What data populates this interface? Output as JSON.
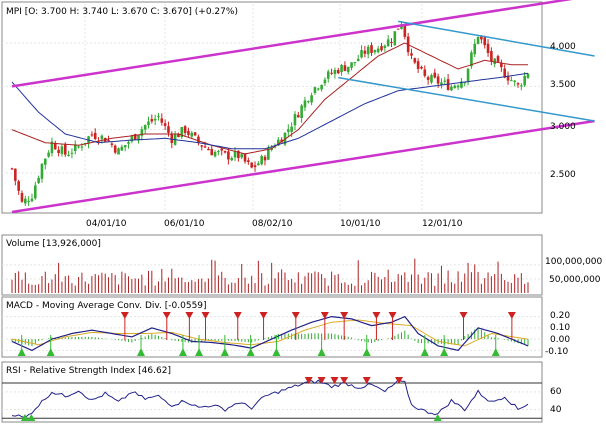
{
  "chart_data": [
    {
      "type": "candlestick",
      "panel": "price",
      "label": "MPI [O: 3.700  H: 3.740  L: 3.670  C: 3.670] (+0.27%)",
      "x_tick_labels": [
        "04/01/10",
        "06/01/10",
        "08/02/10",
        "10/01/10",
        "12/01/10"
      ],
      "y_tick_labels": [
        "4.000",
        "3.500",
        "3.000",
        "2.500"
      ],
      "y_ticks": [
        4.0,
        3.5,
        3.0,
        2.5
      ],
      "ylim": [
        2.05,
        4.45
      ],
      "close_path": [
        [
          0,
          2.55
        ],
        [
          3,
          2.15
        ],
        [
          6,
          2.25
        ],
        [
          9,
          2.6
        ],
        [
          12,
          2.85
        ],
        [
          16,
          2.72
        ],
        [
          20,
          2.8
        ],
        [
          24,
          2.95
        ],
        [
          28,
          2.9
        ],
        [
          32,
          2.75
        ],
        [
          36,
          2.9
        ],
        [
          40,
          3.05
        ],
        [
          44,
          3.15
        ],
        [
          48,
          2.9
        ],
        [
          52,
          3.0
        ],
        [
          56,
          2.85
        ],
        [
          60,
          2.75
        ],
        [
          64,
          2.7
        ],
        [
          68,
          2.7
        ],
        [
          72,
          2.55
        ],
        [
          75,
          2.65
        ],
        [
          78,
          2.8
        ],
        [
          82,
          2.95
        ],
        [
          86,
          3.2
        ],
        [
          90,
          3.45
        ],
        [
          94,
          3.6
        ],
        [
          98,
          3.7
        ],
        [
          102,
          3.75
        ],
        [
          106,
          3.9
        ],
        [
          110,
          3.95
        ],
        [
          114,
          4.05
        ],
        [
          117,
          4.25
        ],
        [
          120,
          3.8
        ],
        [
          124,
          3.6
        ],
        [
          128,
          3.55
        ],
        [
          132,
          3.5
        ],
        [
          136,
          3.6
        ],
        [
          140,
          4.1
        ],
        [
          144,
          3.8
        ],
        [
          148,
          3.65
        ],
        [
          152,
          3.5
        ],
        [
          155,
          3.67
        ]
      ],
      "ma_fast_path": [
        [
          0,
          3.0
        ],
        [
          10,
          2.85
        ],
        [
          20,
          2.82
        ],
        [
          30,
          2.9
        ],
        [
          40,
          2.95
        ],
        [
          50,
          2.95
        ],
        [
          60,
          2.82
        ],
        [
          70,
          2.72
        ],
        [
          78,
          2.78
        ],
        [
          86,
          3.0
        ],
        [
          94,
          3.35
        ],
        [
          102,
          3.6
        ],
        [
          110,
          3.85
        ],
        [
          118,
          4.0
        ],
        [
          126,
          3.85
        ],
        [
          134,
          3.7
        ],
        [
          142,
          3.8
        ],
        [
          150,
          3.75
        ],
        [
          155,
          3.75
        ]
      ],
      "ma_slow_path": [
        [
          0,
          3.55
        ],
        [
          8,
          3.2
        ],
        [
          16,
          2.95
        ],
        [
          26,
          2.85
        ],
        [
          36,
          2.88
        ],
        [
          46,
          2.9
        ],
        [
          56,
          2.85
        ],
        [
          66,
          2.78
        ],
        [
          76,
          2.78
        ],
        [
          86,
          2.9
        ],
        [
          96,
          3.1
        ],
        [
          106,
          3.3
        ],
        [
          116,
          3.45
        ],
        [
          126,
          3.5
        ],
        [
          136,
          3.55
        ],
        [
          146,
          3.6
        ],
        [
          155,
          3.65
        ]
      ],
      "channel_upper": [
        [
          0,
          3.5
        ],
        [
          175,
          4.55
        ]
      ],
      "channel_lower": [
        [
          0,
          2.05
        ],
        [
          175,
          3.1
        ]
      ],
      "downtrend_upper": [
        [
          116,
          4.25
        ],
        [
          175,
          3.85
        ]
      ],
      "downtrend_lower": [
        [
          98,
          3.6
        ],
        [
          175,
          3.1
        ]
      ],
      "colors": {
        "up": "#33aa33",
        "down": "#cc2222",
        "ma_fast": "#aa2222",
        "ma_slow": "#223399",
        "channel": "#cc33cc",
        "trend": "#3399cc"
      }
    },
    {
      "type": "bar",
      "panel": "volume",
      "label": "Volume [13,926,000]",
      "y_tick_labels": [
        "100,000,000",
        "50,000,000"
      ],
      "y_ticks": [
        100000000,
        50000000
      ],
      "ylim": [
        0,
        160000000
      ],
      "color": "#aa2222"
    },
    {
      "type": "line",
      "panel": "macd",
      "label": "MACD - Moving Average Conv. Div. [-0.0559]",
      "y_tick_labels": [
        "0.20",
        "0.10",
        "0.00",
        "-0.10"
      ],
      "y_ticks": [
        0.2,
        0.1,
        0.0,
        -0.1
      ],
      "ylim": [
        -0.15,
        0.25
      ],
      "macd_path": [
        [
          0,
          -0.02
        ],
        [
          6,
          -0.1
        ],
        [
          12,
          0.0
        ],
        [
          18,
          0.05
        ],
        [
          24,
          0.08
        ],
        [
          30,
          0.05
        ],
        [
          36,
          0.02
        ],
        [
          42,
          0.1
        ],
        [
          48,
          0.05
        ],
        [
          54,
          -0.02
        ],
        [
          60,
          -0.03
        ],
        [
          66,
          -0.05
        ],
        [
          72,
          -0.08
        ],
        [
          78,
          0.0
        ],
        [
          84,
          0.08
        ],
        [
          90,
          0.15
        ],
        [
          96,
          0.2
        ],
        [
          102,
          0.18
        ],
        [
          108,
          0.12
        ],
        [
          114,
          0.15
        ],
        [
          118,
          0.2
        ],
        [
          122,
          0.05
        ],
        [
          128,
          -0.06
        ],
        [
          134,
          -0.1
        ],
        [
          140,
          0.1
        ],
        [
          146,
          0.05
        ],
        [
          155,
          -0.06
        ]
      ],
      "signal_path": [
        [
          0,
          0.0
        ],
        [
          8,
          -0.05
        ],
        [
          16,
          0.02
        ],
        [
          24,
          0.06
        ],
        [
          32,
          0.05
        ],
        [
          40,
          0.05
        ],
        [
          48,
          0.06
        ],
        [
          56,
          0.0
        ],
        [
          64,
          -0.03
        ],
        [
          72,
          -0.05
        ],
        [
          80,
          -0.02
        ],
        [
          88,
          0.08
        ],
        [
          96,
          0.15
        ],
        [
          104,
          0.17
        ],
        [
          112,
          0.14
        ],
        [
          120,
          0.12
        ],
        [
          128,
          -0.02
        ],
        [
          136,
          -0.06
        ],
        [
          144,
          0.05
        ],
        [
          155,
          0.0
        ]
      ],
      "colors": {
        "macd": "#222288",
        "signal": "#ddaa22",
        "hist": "#33aa33",
        "buy": "#33bb33",
        "sell": "#cc2222"
      }
    },
    {
      "type": "line",
      "panel": "rsi",
      "label": "RSI - Relative Strength Index [46.62]",
      "y_tick_labels": [
        "60",
        "40"
      ],
      "y_ticks": [
        60,
        40
      ],
      "ylim": [
        28,
        78
      ],
      "rsi_path": [
        [
          0,
          35
        ],
        [
          4,
          30
        ],
        [
          8,
          45
        ],
        [
          12,
          60
        ],
        [
          16,
          55
        ],
        [
          20,
          62
        ],
        [
          24,
          50
        ],
        [
          28,
          58
        ],
        [
          32,
          48
        ],
        [
          36,
          60
        ],
        [
          40,
          52
        ],
        [
          44,
          55
        ],
        [
          48,
          45
        ],
        [
          52,
          50
        ],
        [
          56,
          42
        ],
        [
          60,
          45
        ],
        [
          64,
          40
        ],
        [
          68,
          48
        ],
        [
          72,
          42
        ],
        [
          76,
          55
        ],
        [
          80,
          60
        ],
        [
          84,
          65
        ],
        [
          88,
          70
        ],
        [
          92,
          72
        ],
        [
          96,
          66
        ],
        [
          100,
          70
        ],
        [
          104,
          65
        ],
        [
          108,
          68
        ],
        [
          112,
          60
        ],
        [
          116,
          72
        ],
        [
          118,
          70
        ],
        [
          120,
          45
        ],
        [
          124,
          38
        ],
        [
          128,
          35
        ],
        [
          132,
          50
        ],
        [
          136,
          40
        ],
        [
          140,
          60
        ],
        [
          144,
          48
        ],
        [
          148,
          55
        ],
        [
          152,
          40
        ],
        [
          155,
          47
        ]
      ],
      "overbought": 70,
      "oversold": 30,
      "color": "#222288"
    }
  ]
}
